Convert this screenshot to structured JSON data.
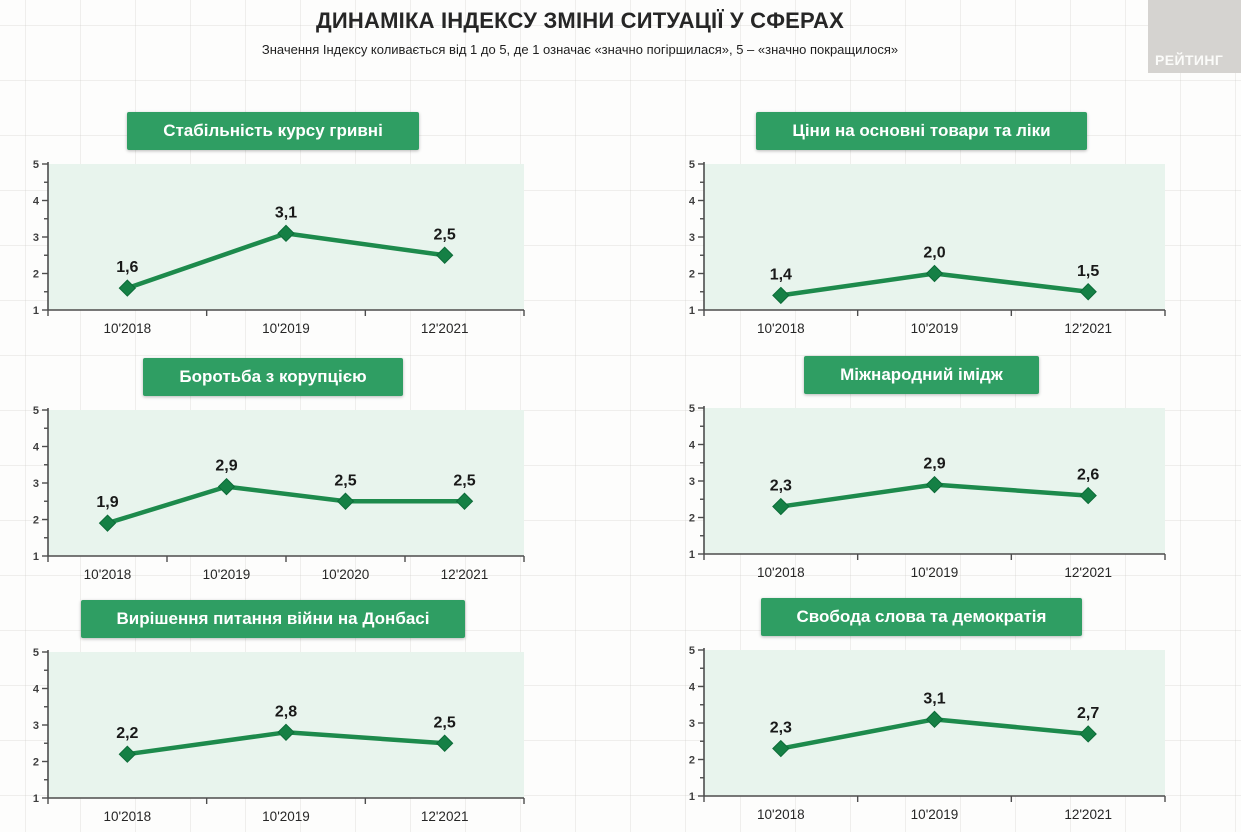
{
  "header": {
    "title": "ДИНАМІКА ІНДЕКСУ ЗМІНИ СИТУАЦІЇ У СФЕРАХ",
    "subtitle": "Значення Індексу коливається від 1 до 5, де 1 означає «значно погіршилася», 5 – «значно покращилося»"
  },
  "logo": {
    "text": "РЕЙТИНГ"
  },
  "colors": {
    "banner_green": "#2f9e63",
    "line_green": "#1d8a4c",
    "marker_green": "#158045",
    "marker_edge": "#0c6b38",
    "plot_bg": "#e8f4ed",
    "axis": "#4d4d4d"
  },
  "axis": {
    "ymin": 1,
    "ymax": 5,
    "yticks": [
      1,
      2,
      3,
      4,
      5
    ]
  },
  "chart_data": [
    {
      "type": "line",
      "title": "Стабільність курсу гривні",
      "categories": [
        "10'2018",
        "10'2019",
        "12'2021"
      ],
      "values": [
        1.6,
        3.1,
        2.5
      ],
      "labels": [
        "1,6",
        "3,1",
        "2,5"
      ],
      "ylim": [
        1,
        5
      ]
    },
    {
      "type": "line",
      "title": "Ціни на основні товари та ліки",
      "categories": [
        "10'2018",
        "10'2019",
        "12'2021"
      ],
      "values": [
        1.4,
        2.0,
        1.5
      ],
      "labels": [
        "1,4",
        "2,0",
        "1,5"
      ],
      "ylim": [
        1,
        5
      ]
    },
    {
      "type": "line",
      "title": "Боротьба з корупцією",
      "categories": [
        "10'2018",
        "10'2019",
        "10'2020",
        "12'2021"
      ],
      "values": [
        1.9,
        2.9,
        2.5,
        2.5
      ],
      "labels": [
        "1,9",
        "2,9",
        "2,5",
        "2,5"
      ],
      "ylim": [
        1,
        5
      ]
    },
    {
      "type": "line",
      "title": "Міжнародний імідж",
      "categories": [
        "10'2018",
        "10'2019",
        "12'2021"
      ],
      "values": [
        2.3,
        2.9,
        2.6
      ],
      "labels": [
        "2,3",
        "2,9",
        "2,6"
      ],
      "ylim": [
        1,
        5
      ]
    },
    {
      "type": "line",
      "title": "Вирішення питання війни на Донбасі",
      "categories": [
        "10'2018",
        "10'2019",
        "12'2021"
      ],
      "values": [
        2.2,
        2.8,
        2.5
      ],
      "labels": [
        "2,2",
        "2,8",
        "2,5"
      ],
      "ylim": [
        1,
        5
      ]
    },
    {
      "type": "line",
      "title": "Свобода слова та демократія",
      "categories": [
        "10'2018",
        "10'2019",
        "12'2021"
      ],
      "values": [
        2.3,
        3.1,
        2.7
      ],
      "labels": [
        "2,3",
        "3,1",
        "2,7"
      ],
      "ylim": [
        1,
        5
      ]
    }
  ]
}
